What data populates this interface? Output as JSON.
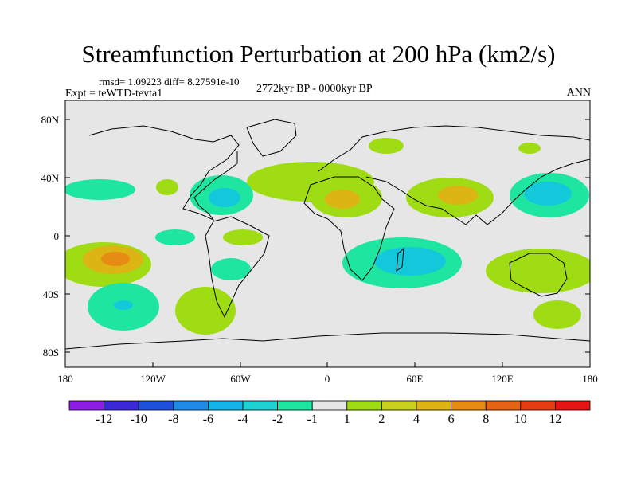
{
  "title": "Streamfunction Perturbation at 200 hPa (km2/s)",
  "rmsd_line": "rmsd= 1.09223 diff= 8.27591e-10",
  "expt_line": "Expt = teWTD-tevta1",
  "period": "2772kyr BP - 0000kyr BP",
  "season": "ANN",
  "lat_labels": [
    "80N",
    "40N",
    "0",
    "40S",
    "80S"
  ],
  "lon_labels": [
    "180",
    "120W",
    "60W",
    "0",
    "60E",
    "120E",
    "180"
  ],
  "colorbar": {
    "labels": [
      "-12",
      "-10",
      "-8",
      "-6",
      "-4",
      "-2",
      "-1",
      "1",
      "2",
      "4",
      "6",
      "8",
      "10",
      "12"
    ],
    "colors": [
      "#8c1ee6",
      "#3b28d8",
      "#1e50dc",
      "#1e8ce6",
      "#14b4e6",
      "#1ed2d2",
      "#1ee6a0",
      "#e6e6e6",
      "#a0dc14",
      "#c8d21e",
      "#dcb414",
      "#e68c14",
      "#e66414",
      "#e63c14",
      "#e61414"
    ]
  },
  "colors": {
    "land_bg": "#e6e6e6",
    "green": "#a0dc14",
    "aqua": "#1ee6a0",
    "cyan": "#14c8dc",
    "orange": "#dcb414",
    "darkorange": "#e68c14"
  }
}
